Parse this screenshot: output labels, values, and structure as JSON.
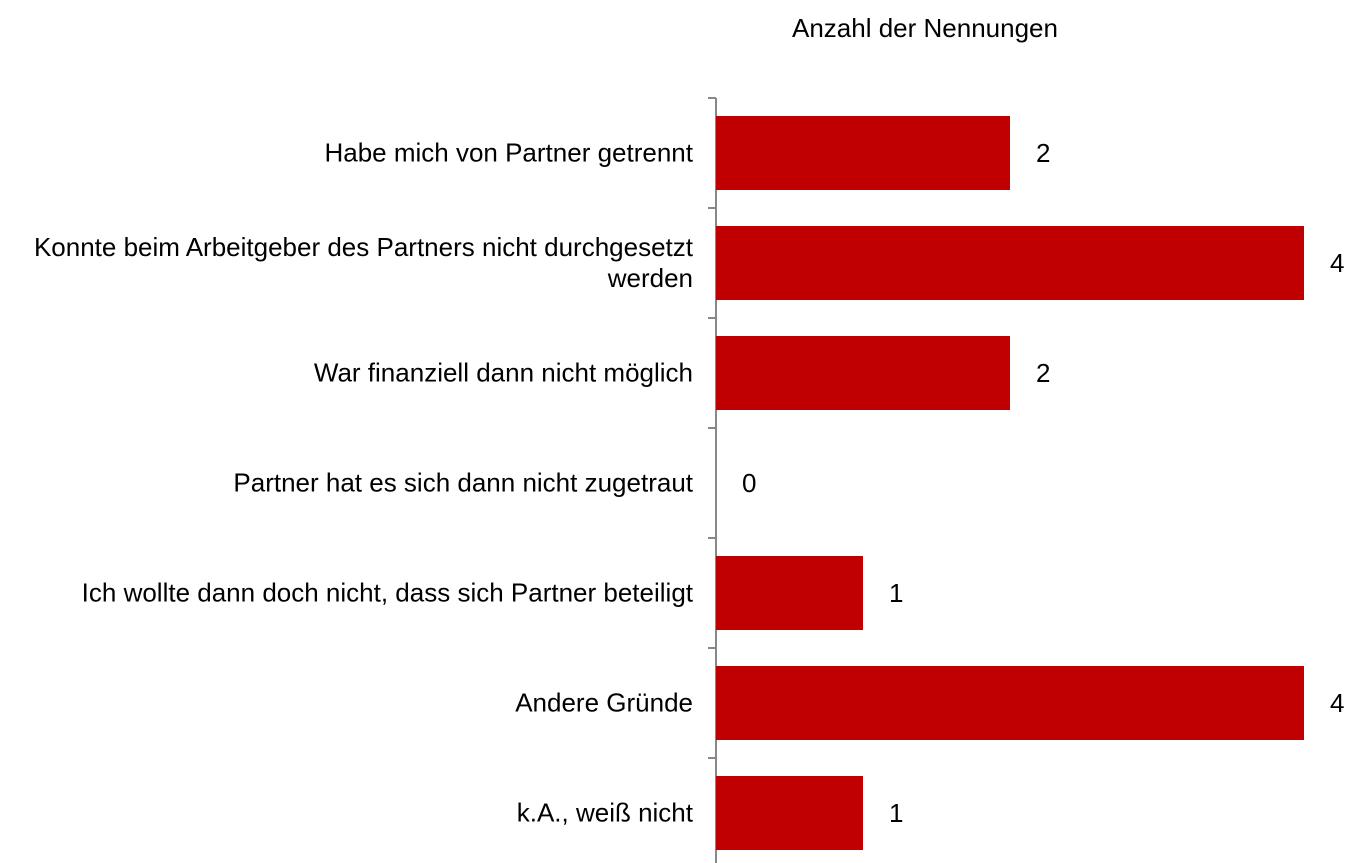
{
  "chart_data": {
    "type": "bar",
    "orientation": "horizontal",
    "title": "Anzahl der Nennungen",
    "categories": [
      "Habe mich von Partner getrennt",
      "Konnte beim Arbeitgeber des Partners nicht durchgesetzt werden",
      "War finanziell dann nicht möglich",
      "Partner hat es sich dann nicht zugetraut",
      "Ich wollte dann doch nicht, dass sich Partner beteiligt",
      "Andere Gründe",
      "k.A., weiß nicht"
    ],
    "values": [
      2,
      4,
      2,
      0,
      1,
      4,
      1
    ],
    "color": "#c00000"
  }
}
